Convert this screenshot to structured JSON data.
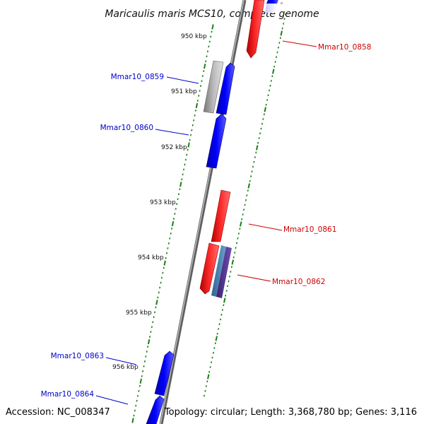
{
  "title": "Maricaulis maris MCS10, complete genome",
  "footer": {
    "accession": "Accession: NC_008347",
    "summary": "Topology: circular; Length: 3,368,780 bp; Genes: 3,116"
  },
  "kbp_labels": [
    "950 kbp",
    "951 kbp",
    "952 kbp",
    "953 kbp",
    "954 kbp",
    "955 kbp",
    "956 kbp"
  ],
  "genes_left": [
    {
      "id": "Mmar10_0859"
    },
    {
      "id": "Mmar10_0860"
    },
    {
      "id": "Mmar10_0863"
    },
    {
      "id": "Mmar10_0864"
    }
  ],
  "genes_right": [
    {
      "id": "Mmar10_0858"
    },
    {
      "id": "Mmar10_0861"
    },
    {
      "id": "Mmar10_0862"
    }
  ],
  "colors": {
    "forward_gene": "#ff0000",
    "reverse_gene": "#0000ff",
    "pseudo_gene": "#aaaaaa",
    "feature_blue": "#4a7fb5",
    "feature_purple": "#553399",
    "backbone": "#7f7f7f",
    "ticks": "#1a7f1a",
    "left_label": "#0000cc",
    "right_label": "#cc0000"
  }
}
